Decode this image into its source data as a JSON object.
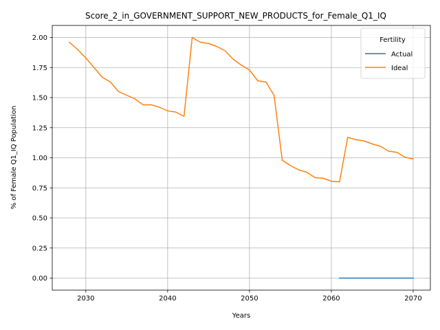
{
  "chart_data": {
    "type": "line",
    "title": "Score_2_in_GOVERNMENT_SUPPORT_NEW_PRODUCTS_for_Female_Q1_IQ",
    "xlabel": "Years",
    "ylabel": "% of Female Q1_IQ Population",
    "xlim": [
      2025.9,
      2072.1
    ],
    "ylim": [
      -0.1,
      2.1
    ],
    "xticks": [
      2030,
      2040,
      2050,
      2060,
      2070
    ],
    "yticks": [
      0.0,
      0.25,
      0.5,
      0.75,
      1.0,
      1.25,
      1.5,
      1.75,
      2.0
    ],
    "grid": true,
    "legend": {
      "title": "Fertility",
      "placement": "top-right"
    },
    "series": [
      {
        "name": "Actual",
        "color": "#1f77b4",
        "x": [
          2061,
          2062,
          2063,
          2064,
          2065,
          2066,
          2067,
          2068,
          2069,
          2070
        ],
        "y": [
          0.0,
          0.0,
          0.0,
          0.0,
          0.0,
          0.0,
          0.0,
          0.0,
          0.0,
          0.0
        ]
      },
      {
        "name": "Ideal",
        "color": "#ff7f0e",
        "x": [
          2028,
          2029,
          2030,
          2031,
          2032,
          2033,
          2034,
          2035,
          2036,
          2037,
          2038,
          2039,
          2040,
          2041,
          2042,
          2043,
          2044,
          2045,
          2046,
          2047,
          2048,
          2049,
          2050,
          2051,
          2052,
          2053,
          2054,
          2055,
          2056,
          2057,
          2058,
          2059,
          2060,
          2061,
          2062,
          2063,
          2064,
          2065,
          2066,
          2067,
          2068,
          2069,
          2070
        ],
        "y": [
          1.96,
          1.9,
          1.83,
          1.75,
          1.67,
          1.63,
          1.55,
          1.52,
          1.49,
          1.44,
          1.44,
          1.42,
          1.39,
          1.38,
          1.345,
          2.0,
          1.96,
          1.95,
          1.925,
          1.89,
          1.82,
          1.77,
          1.73,
          1.64,
          1.63,
          1.52,
          0.98,
          0.935,
          0.9,
          0.88,
          0.835,
          0.83,
          0.805,
          0.8,
          1.17,
          1.15,
          1.14,
          1.115,
          1.095,
          1.055,
          1.045,
          1.005,
          0.99
        ]
      }
    ]
  }
}
